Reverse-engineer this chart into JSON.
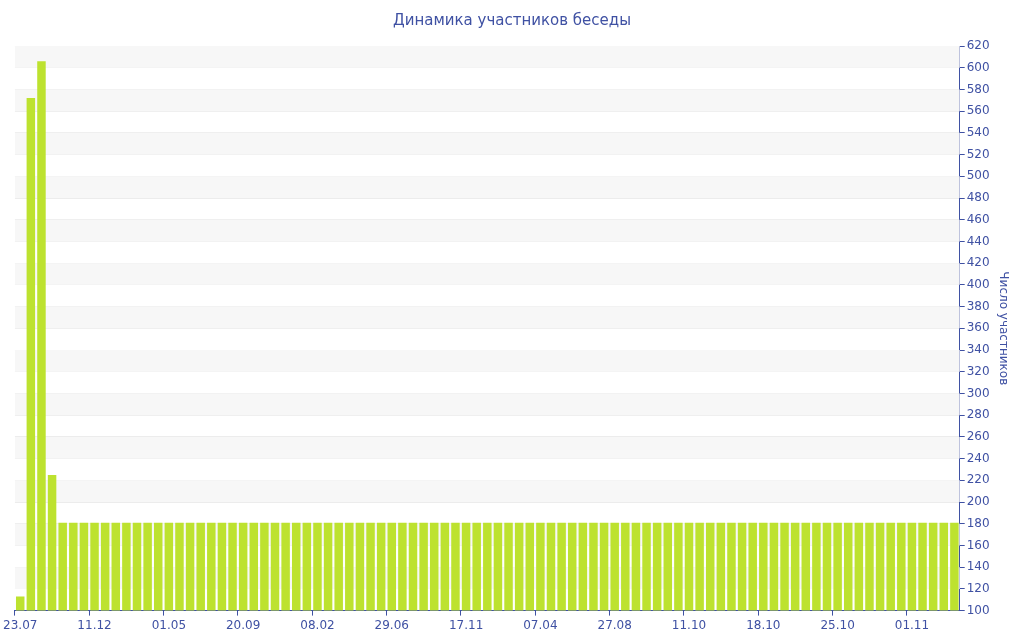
{
  "chart_data": {
    "type": "bar",
    "title": "Динамика участников беседы",
    "ylabel": "Число участников",
    "categories": [
      "23.07",
      null,
      null,
      null,
      null,
      null,
      null,
      "11.12",
      null,
      null,
      null,
      null,
      null,
      null,
      "01.05",
      null,
      null,
      null,
      null,
      null,
      null,
      "20.09",
      null,
      null,
      null,
      null,
      null,
      null,
      "08.02",
      null,
      null,
      null,
      null,
      null,
      null,
      "29.06",
      null,
      null,
      null,
      null,
      null,
      null,
      "17.11",
      null,
      null,
      null,
      null,
      null,
      null,
      "07.04",
      null,
      null,
      null,
      null,
      null,
      null,
      "27.08",
      null,
      null,
      null,
      null,
      null,
      null,
      "11.10",
      null,
      null,
      null,
      null,
      null,
      null,
      "18.10",
      null,
      null,
      null,
      null,
      null,
      null,
      "25.10",
      null,
      null,
      null,
      null,
      null,
      null,
      "01.11",
      null,
      null,
      null,
      null
    ],
    "values": [
      113,
      572,
      606,
      225,
      181,
      181,
      181,
      181,
      181,
      181,
      181,
      181,
      181,
      181,
      181,
      181,
      181,
      181,
      181,
      181,
      181,
      181,
      181,
      181,
      181,
      181,
      181,
      181,
      181,
      181,
      181,
      181,
      181,
      181,
      181,
      181,
      181,
      181,
      181,
      181,
      181,
      181,
      181,
      181,
      181,
      181,
      181,
      181,
      181,
      181,
      181,
      181,
      181,
      181,
      181,
      181,
      181,
      181,
      181,
      181,
      181,
      181,
      181,
      181,
      181,
      181,
      181,
      181,
      181,
      181,
      181,
      181,
      181,
      181,
      181,
      181,
      181,
      181,
      181,
      181,
      181,
      181,
      181,
      181,
      181,
      181,
      181,
      181,
      181
    ],
    "color": "#bde22f",
    "ylim": [
      100,
      620
    ],
    "yticks": [
      100,
      120,
      140,
      160,
      180,
      200,
      220,
      240,
      260,
      280,
      300,
      320,
      340,
      360,
      380,
      400,
      420,
      440,
      460,
      480,
      500,
      520,
      540,
      560,
      580,
      600,
      620
    ],
    "grid": true,
    "legend": false
  }
}
